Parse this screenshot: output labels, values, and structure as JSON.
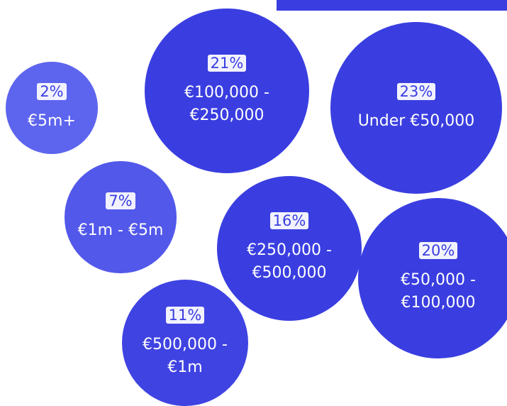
{
  "chart_data": {
    "type": "bubble",
    "categories": [
      "€5m+",
      "€100,000 - €250,000",
      "Under €50,000",
      "€1m - €5m",
      "€250,000 - €500,000",
      "€50,000 - €100,000",
      "€500,000 - €1m"
    ],
    "values": [
      2,
      21,
      23,
      7,
      16,
      20,
      11
    ],
    "value_labels": [
      "2%",
      "21%",
      "23%",
      "7%",
      "16%",
      "20%",
      "11%"
    ],
    "colors": [
      "#5d64ee",
      "#3a3ee0",
      "#3a3ee0",
      "#5258ea",
      "#3a3ee0",
      "#3a3ee0",
      "#3f43e2"
    ]
  }
}
